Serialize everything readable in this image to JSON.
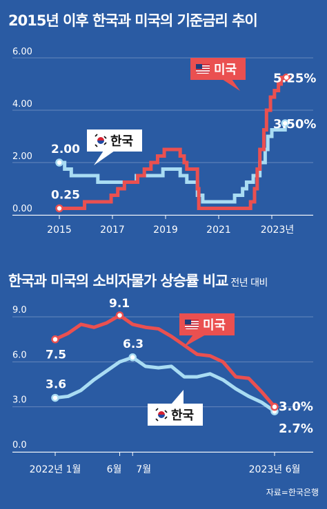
{
  "source": "자료=한국은행",
  "chart_data": [
    {
      "type": "line",
      "title": "2015년 이후 한국과 미국의 기준금리 추이",
      "yticks": [
        "6.00",
        "4.00",
        "2.00",
        "0.00"
      ],
      "xticks": [
        "2015",
        "2017",
        "2019",
        "2021",
        "2023년"
      ],
      "ylim": [
        0,
        6
      ],
      "xlim": [
        2015,
        2023.5
      ],
      "series": [
        {
          "name": "한국",
          "color": "#a9dcf3",
          "x": [
            2015.0,
            2015.2,
            2015.45,
            2016.45,
            2017.9,
            2018.9,
            2019.55,
            2019.8,
            2020.2,
            2020.4,
            2021.6,
            2021.9,
            2022.05,
            2022.3,
            2022.55,
            2022.75,
            2022.85,
            2023.0,
            2023.5
          ],
          "values": [
            2.0,
            1.75,
            1.5,
            1.25,
            1.5,
            1.75,
            1.5,
            1.25,
            0.75,
            0.5,
            0.75,
            1.0,
            1.25,
            1.5,
            2.0,
            2.5,
            3.0,
            3.25,
            3.5
          ],
          "start_label": "2.00",
          "end_label": "3.50%",
          "legend_label": "한국"
        },
        {
          "name": "미국",
          "color": "#ea5050",
          "x": [
            2015.0,
            2015.95,
            2016.95,
            2017.2,
            2017.45,
            2017.95,
            2018.2,
            2018.45,
            2018.7,
            2018.95,
            2019.55,
            2019.7,
            2019.8,
            2020.2,
            2020.25,
            2022.2,
            2022.35,
            2022.45,
            2022.55,
            2022.7,
            2022.8,
            2022.95,
            2023.1,
            2023.25,
            2023.35,
            2023.55
          ],
          "values": [
            0.25,
            0.5,
            0.75,
            1.0,
            1.25,
            1.5,
            1.75,
            2.0,
            2.25,
            2.5,
            2.25,
            2.0,
            1.75,
            1.0,
            0.25,
            0.5,
            1.0,
            1.75,
            2.5,
            3.25,
            4.0,
            4.5,
            4.75,
            5.0,
            5.25,
            5.25
          ],
          "start_label": "0.25",
          "end_label": "5.25%",
          "legend_label": "미국"
        }
      ]
    },
    {
      "type": "line",
      "title": "한국과 미국의 소비자물가 상승률 비교",
      "subtitle": "전년 대비",
      "yticks": [
        "9.0",
        "6.0",
        "3.0",
        "0.0"
      ],
      "xticks": [
        "2022년 1월",
        "6월",
        "7월",
        "2023년 6월"
      ],
      "ylim": [
        0,
        9
      ],
      "x": [
        "2022-01",
        "2022-02",
        "2022-03",
        "2022-04",
        "2022-05",
        "2022-06",
        "2022-07",
        "2022-08",
        "2022-09",
        "2022-10",
        "2022-11",
        "2022-12",
        "2023-01",
        "2023-02",
        "2023-03",
        "2023-04",
        "2023-05",
        "2023-06"
      ],
      "series": [
        {
          "name": "한국",
          "color": "#a9dcf3",
          "values": [
            3.6,
            3.7,
            4.1,
            4.8,
            5.4,
            6.0,
            6.3,
            5.7,
            5.6,
            5.7,
            5.0,
            5.0,
            5.2,
            4.8,
            4.2,
            3.7,
            3.3,
            2.7
          ],
          "start_label": "3.6",
          "peak_label": "6.3",
          "end_label": "2.7%",
          "legend_label": "한국"
        },
        {
          "name": "미국",
          "color": "#ea5050",
          "values": [
            7.5,
            7.9,
            8.5,
            8.3,
            8.6,
            9.1,
            8.5,
            8.3,
            8.2,
            7.7,
            7.1,
            6.5,
            6.4,
            6.0,
            5.0,
            4.9,
            4.0,
            3.0
          ],
          "start_label": "7.5",
          "peak_label": "9.1",
          "end_label": "3.0%",
          "legend_label": "미국"
        }
      ]
    }
  ]
}
